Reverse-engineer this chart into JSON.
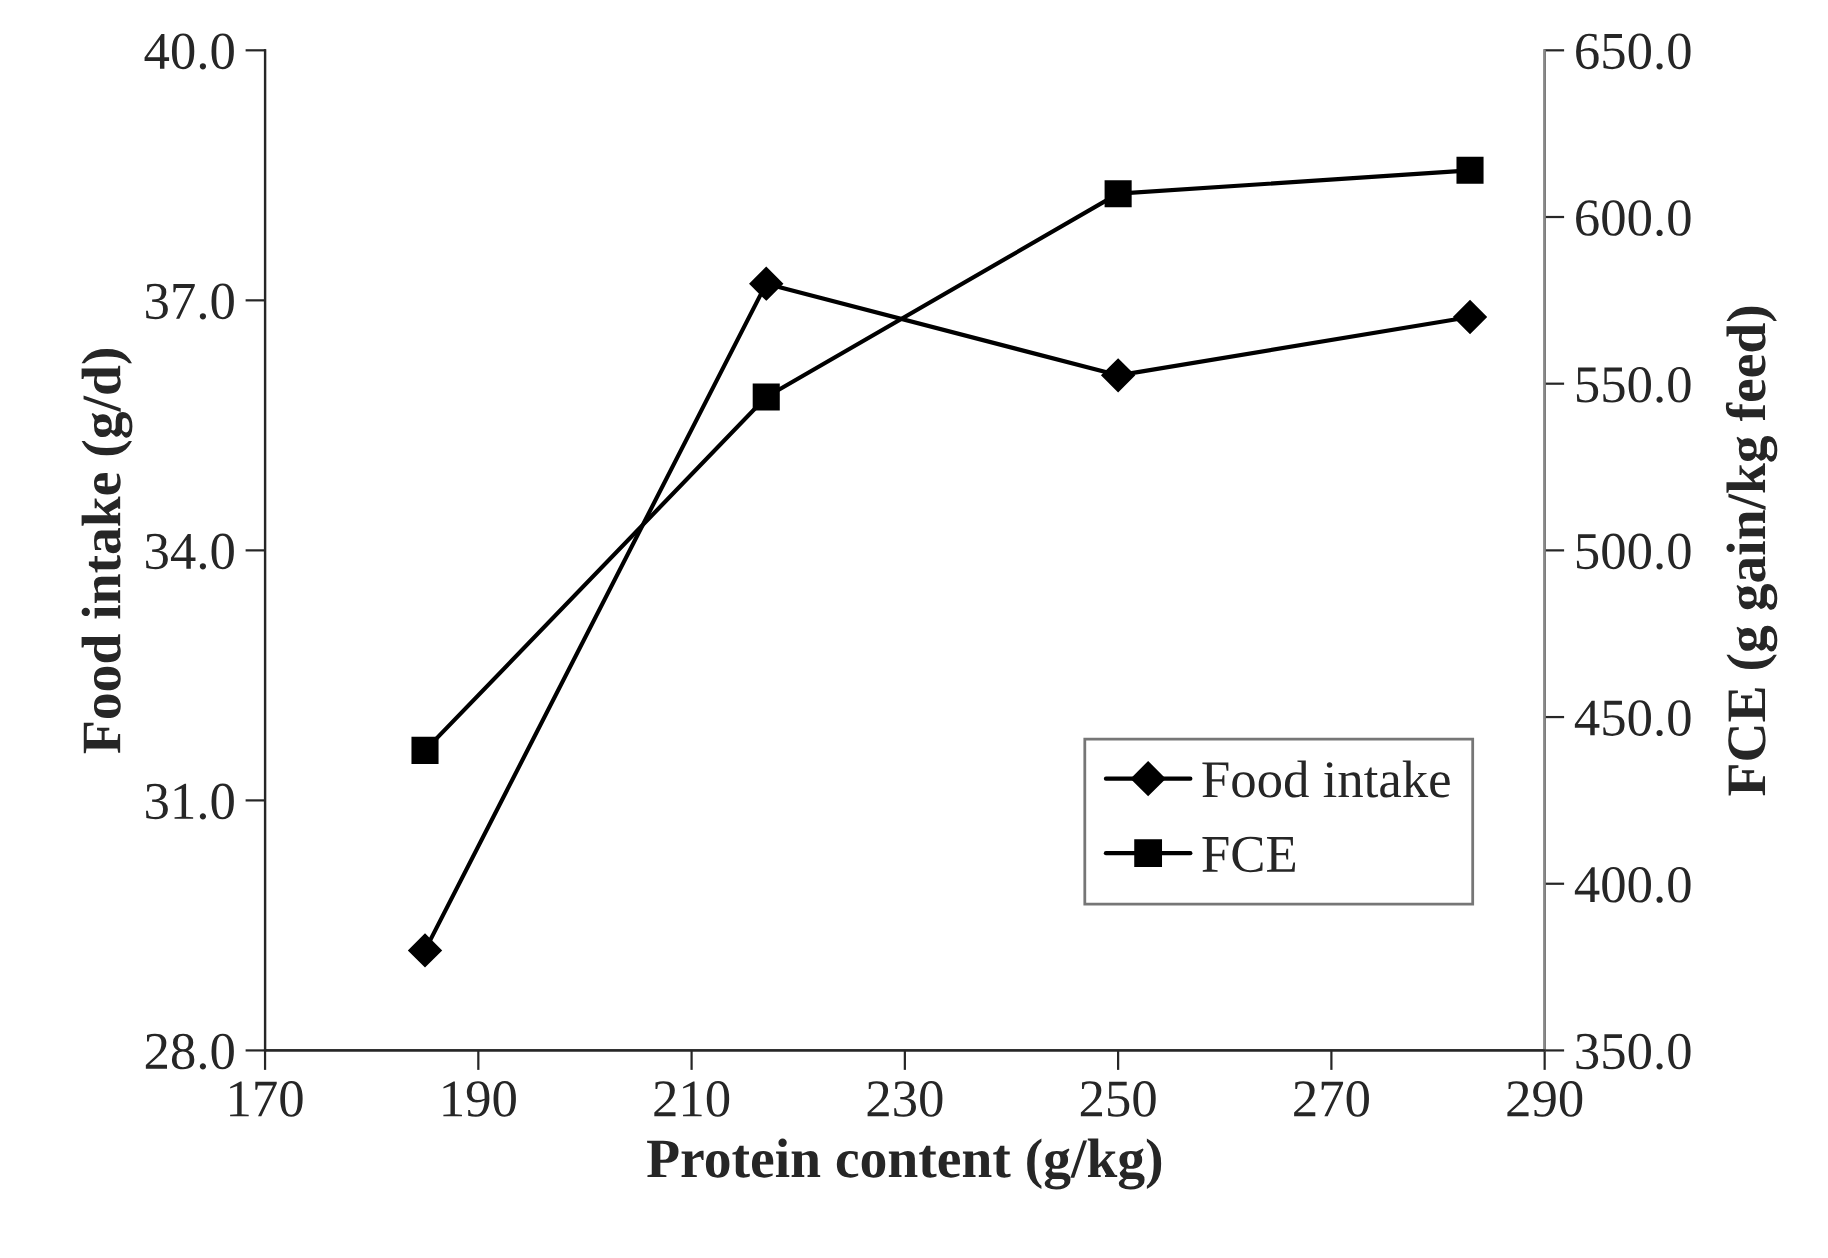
{
  "chart_data": {
    "type": "line",
    "xlabel": "Protein content (g/kg)",
    "ylabel": "Food intake (g/d)",
    "y2label": "FCE (g gain/kg feed)",
    "x": [
      185,
      217,
      250,
      283
    ],
    "series": [
      {
        "name": "Food intake",
        "color": "#000000",
        "values": [
          29.2,
          37.2,
          36.1,
          36.8
        ],
        "marker": "diamond"
      },
      {
        "name": "FCE",
        "color": "#000000",
        "values": [
          440,
          546,
          607,
          614
        ],
        "axis": "y2",
        "marker": "square"
      }
    ],
    "xlim": [
      170,
      290
    ],
    "xticks": [
      170,
      190,
      210,
      230,
      250,
      270,
      290
    ],
    "ylim": [
      28,
      40
    ],
    "yticks": [
      {
        "value": 28,
        "label": "28.0"
      },
      {
        "value": 31,
        "label": "31.0"
      },
      {
        "value": 34,
        "label": "34.0"
      },
      {
        "value": 37,
        "label": "37.0"
      },
      {
        "value": 40,
        "label": "40.0"
      }
    ],
    "y2lim": [
      350,
      650
    ],
    "y2ticks": [
      {
        "value": 350,
        "label": "350.0"
      },
      {
        "value": 400,
        "label": "400.0"
      },
      {
        "value": 450,
        "label": "450.0"
      },
      {
        "value": 500,
        "label": "500.0"
      },
      {
        "value": 550,
        "label": "550.0"
      },
      {
        "value": 600,
        "label": "600.0"
      },
      {
        "value": 650,
        "label": "650.0"
      }
    ],
    "grid": false,
    "legend": "bottom right",
    "line_style": "solid"
  }
}
